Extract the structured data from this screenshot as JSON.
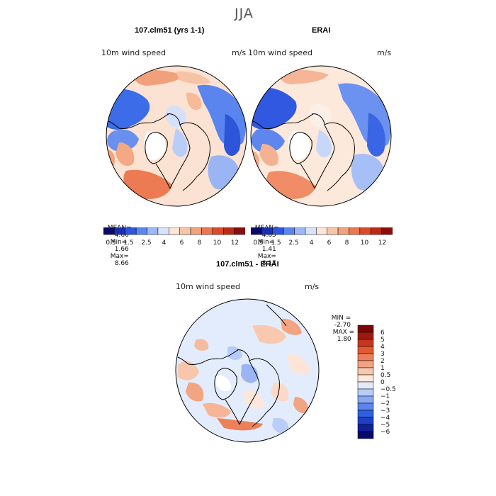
{
  "figure": {
    "season": "JJA",
    "panel_left": {
      "title": "107.clm51 (yrs 1-1)",
      "variable": "10m wind speed",
      "units": "m/s",
      "mean_label": "MEAN=",
      "mean": "4.66",
      "min_label": "Min=",
      "min": "1.66",
      "max_label": "Max=",
      "max": "8.66"
    },
    "panel_right": {
      "title": "ERAI",
      "variable": "10m wind speed",
      "units": "m/s",
      "mean_label": "MEAN=",
      "mean": "4.65",
      "min_label": "Min=",
      "min": "1.41",
      "max_label": "Max=",
      "max": "8.17"
    },
    "panel_diff": {
      "title": "107.clm51 - ERAI",
      "variable": "10m wind speed",
      "units": "m/s",
      "min_label": "MIN =",
      "min": "-2.70",
      "max_label": "MAX =",
      "max": "1.80"
    },
    "abs_colorbar": {
      "colors": [
        "#08086b",
        "#1a2fb0",
        "#2e55e0",
        "#5b85ef",
        "#9db8f5",
        "#d6e3fb",
        "#fbe6d8",
        "#f7c6a8",
        "#f2a27f",
        "#ea7852",
        "#dc4a2a",
        "#bb2a14",
        "#8c0d0d"
      ],
      "tick_labels": [
        "0.5",
        "1.5",
        "2.5",
        "4",
        "6",
        "8",
        "10",
        "12"
      ]
    },
    "diff_colorbar": {
      "colors": [
        "#08086b",
        "#10209a",
        "#1f3fc5",
        "#2e5fe0",
        "#5b84ee",
        "#88a8f4",
        "#b9cdf8",
        "#e2ebfc",
        "#fde8dc",
        "#f8c7ad",
        "#f2a482",
        "#ec7f57",
        "#e45934",
        "#c9361b",
        "#9e1a10",
        "#7a0606"
      ],
      "tick_labels": [
        "6",
        "5",
        "4",
        "3",
        "2",
        "1",
        "0.5",
        "0",
        "−0.5",
        "−1",
        "−2",
        "−3",
        "−4",
        "−5",
        "−6"
      ]
    }
  }
}
